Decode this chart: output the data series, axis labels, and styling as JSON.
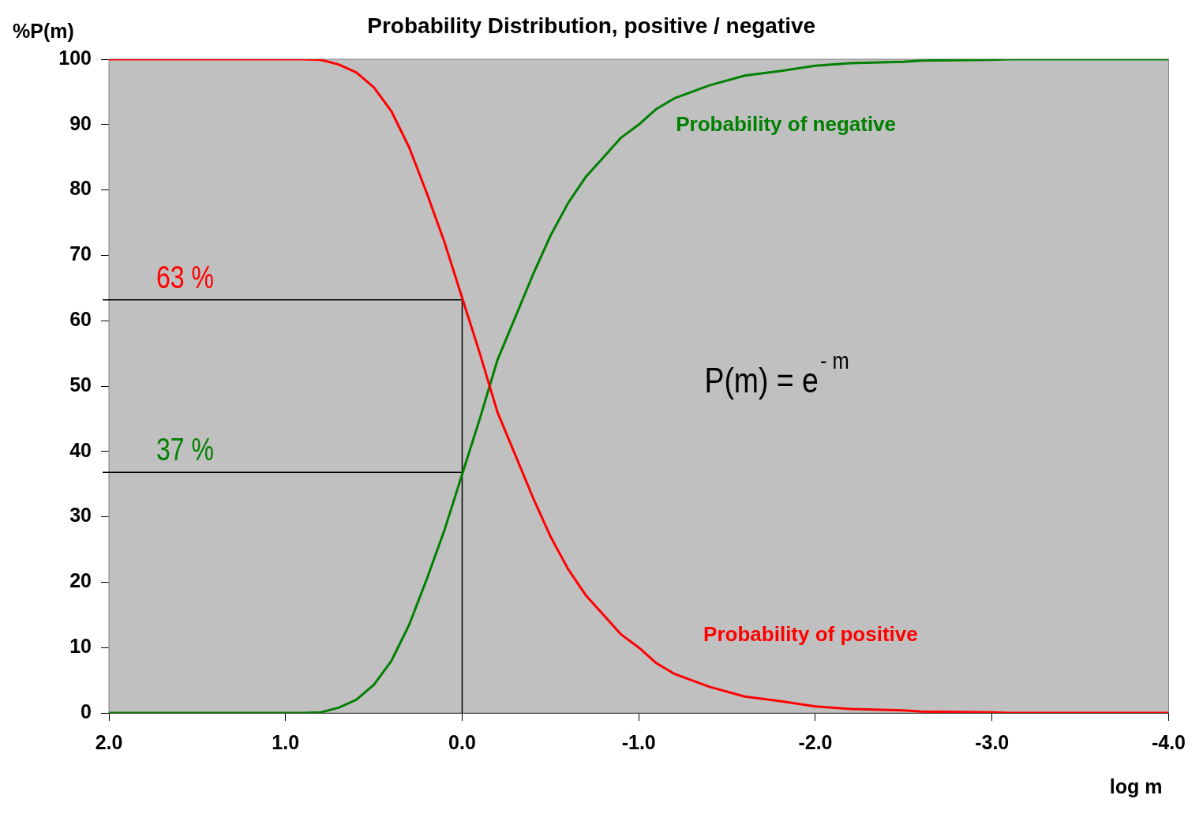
{
  "chart_data": {
    "type": "line",
    "title": "Probability Distribution, positive / negative",
    "xlabel": "log m",
    "ylabel": "%P(m)",
    "x": [
      2.0,
      1.5,
      1.0,
      0.9,
      0.8,
      0.7,
      0.6,
      0.5,
      0.4,
      0.3,
      0.2,
      0.1,
      0.0,
      -0.1,
      -0.2,
      -0.3,
      -0.4,
      -0.5,
      -0.6,
      -0.7,
      -0.8,
      -0.9,
      -1.0,
      -1.1,
      -1.2,
      -1.4,
      -1.6,
      -1.8,
      -2.0,
      -2.2,
      -2.5,
      -2.6,
      -3.0,
      -3.1,
      -4.0
    ],
    "series": [
      {
        "name": "Probability of positive",
        "color": "#ff0000",
        "values": [
          100,
          100,
          100,
          100,
          99.9,
          99.2,
          98,
          95.7,
          92,
          86.5,
          79.5,
          72,
          63.5,
          55,
          46,
          39.5,
          33,
          27,
          22,
          18,
          15,
          12,
          10,
          7.6,
          6,
          4,
          2.5,
          1.8,
          1,
          0.6,
          0.4,
          0.2,
          0.1,
          0,
          0
        ]
      },
      {
        "name": "Probability of negative",
        "color": "#008000",
        "values": [
          0,
          0,
          0,
          0,
          0.1,
          0.8,
          2,
          4.3,
          8,
          13.5,
          20.5,
          28,
          36.5,
          45,
          54,
          60.5,
          67,
          73,
          78,
          82,
          85,
          88,
          90,
          92.4,
          94,
          96,
          97.5,
          98.2,
          99,
          99.4,
          99.6,
          99.8,
          99.9,
          100,
          100
        ]
      }
    ],
    "xlim": [
      2,
      -4
    ],
    "xticks": [
      {
        "value": 2,
        "label": "2.0"
      },
      {
        "value": 1,
        "label": "1.0"
      },
      {
        "value": 0,
        "label": "0.0"
      },
      {
        "value": -1,
        "label": "-1.0"
      },
      {
        "value": -2,
        "label": "-2.0"
      },
      {
        "value": -3,
        "label": "-3.0"
      },
      {
        "value": -4,
        "label": "-4.0"
      }
    ],
    "ylim": [
      0,
      100
    ],
    "yticks": [
      0,
      10,
      20,
      30,
      40,
      50,
      60,
      70,
      80,
      90,
      100
    ],
    "ref_lines": [
      {
        "axis": "y",
        "value": 63.2,
        "label": "63 %"
      },
      {
        "axis": "y",
        "value": 36.8,
        "label": "37 %"
      },
      {
        "axis": "x",
        "value": 0
      }
    ],
    "annotations": [
      "P(m) = e$^{- m}$"
    ],
    "grid": false,
    "legend": false,
    "marker": "none",
    "line_style": "solid"
  }
}
